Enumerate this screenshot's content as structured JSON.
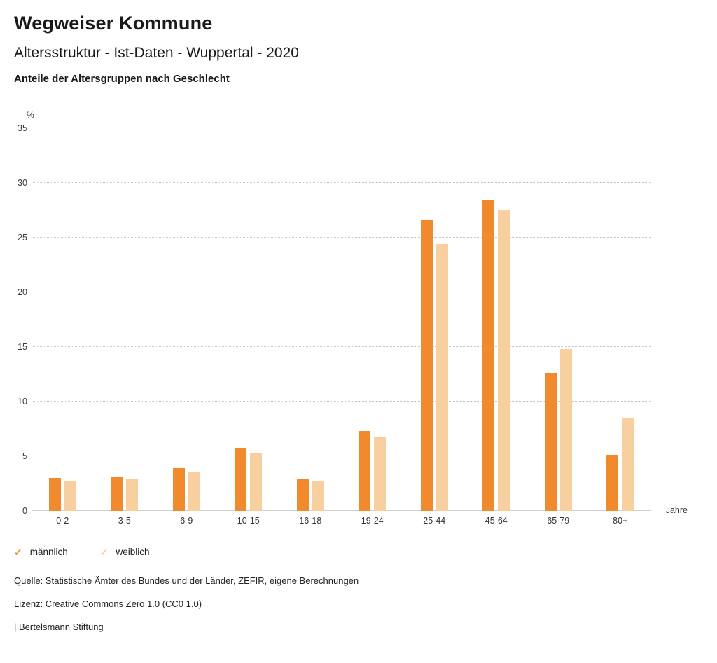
{
  "header": {
    "title": "Wegweiser Kommune",
    "subtitle": "Altersstruktur - Ist-Daten - Wuppertal - 2020",
    "section_title": "Anteile der Altersgruppen nach Geschlecht"
  },
  "chart_data": {
    "type": "bar",
    "title": "Anteile der Altersgruppen nach Geschlecht",
    "xlabel": "Jahre",
    "ylabel": "%",
    "ylim": [
      0,
      35
    ],
    "ytick_step": 5,
    "grid": true,
    "legend_position": "bottom",
    "categories": [
      "0-2",
      "3-5",
      "6-9",
      "10-15",
      "16-18",
      "19-24",
      "25-44",
      "45-64",
      "65-79",
      "80+"
    ],
    "series": [
      {
        "name": "männlich",
        "color": "#F08A2C",
        "values": [
          3.0,
          3.1,
          3.9,
          5.8,
          2.9,
          7.3,
          26.6,
          28.4,
          12.6,
          5.1
        ]
      },
      {
        "name": "weiblich",
        "color": "#F8CF9E",
        "values": [
          2.7,
          2.9,
          3.5,
          5.3,
          2.7,
          6.8,
          24.4,
          27.5,
          14.8,
          8.5
        ]
      }
    ]
  },
  "legend": {
    "items": [
      {
        "label": "männlich",
        "color": "#F08A2C"
      },
      {
        "label": "weiblich",
        "color": "#F8CF9E"
      }
    ]
  },
  "footer": {
    "source": "Quelle: Statistische Ämter des Bundes und der Länder, ZEFIR, eigene Berechnungen",
    "license": "Lizenz: Creative Commons Zero 1.0 (CC0 1.0)",
    "attribution": "| Bertelsmann Stiftung"
  }
}
